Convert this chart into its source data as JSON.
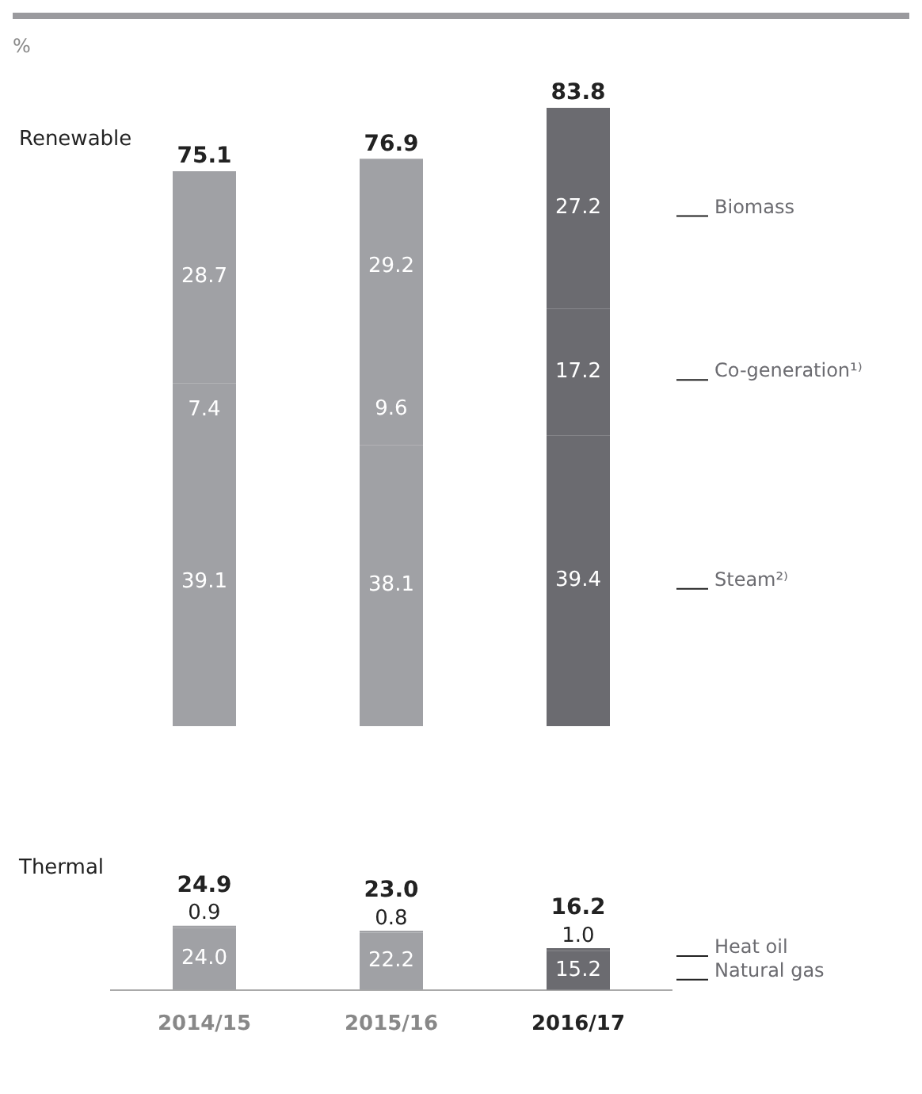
{
  "chart_data": [
    {
      "type": "bar",
      "stacked": true,
      "title": "Renewable",
      "ylabel": "%",
      "tick_labels": false,
      "categories": [
        "2014/15",
        "2015/16",
        "2016/17"
      ],
      "series": [
        {
          "name": "Steam²⁾",
          "colors": [
            "#a0a1a5",
            "#a0a1a5",
            "#6b6b70"
          ],
          "values": [
            39.1,
            38.1,
            39.4
          ],
          "value_labels": [
            "39.1",
            "38.1",
            "39.4"
          ]
        },
        {
          "name": "Co-generation¹⁾",
          "colors": [
            "#a0a1a5",
            "#a0a1a5",
            "#6b6b70"
          ],
          "values": [
            7.4,
            9.6,
            17.2
          ],
          "value_labels": [
            "7.4",
            "9.6",
            "17.2"
          ]
        },
        {
          "name": "Biomass",
          "colors": [
            "#a0a1a5",
            "#a0a1a5",
            "#6b6b70"
          ],
          "values": [
            28.7,
            29.2,
            27.2
          ],
          "value_labels": [
            "28.7",
            "29.2",
            "27.2"
          ]
        }
      ],
      "totals": [
        "75.1",
        "76.9",
        "83.8"
      ]
    },
    {
      "type": "bar",
      "stacked": true,
      "title": "Thermal",
      "tick_labels": "x",
      "categories": [
        "2014/15",
        "2015/16",
        "2016/17"
      ],
      "series": [
        {
          "name": "Natural gas",
          "colors": [
            "#a0a1a5",
            "#a0a1a5",
            "#6b6b70"
          ],
          "values": [
            24.0,
            22.2,
            15.2
          ],
          "value_labels": [
            "24.0",
            "22.2",
            "15.2"
          ]
        },
        {
          "name": "Heat oil",
          "colors": [
            "#a0a1a5",
            "#a0a1a5",
            "#6b6b70"
          ],
          "values": [
            0.9,
            0.8,
            1.0
          ],
          "value_labels": [
            "0.9",
            "0.8",
            "1.0"
          ]
        }
      ],
      "totals": [
        "24.9",
        "23.0",
        "16.2"
      ]
    }
  ]
}
